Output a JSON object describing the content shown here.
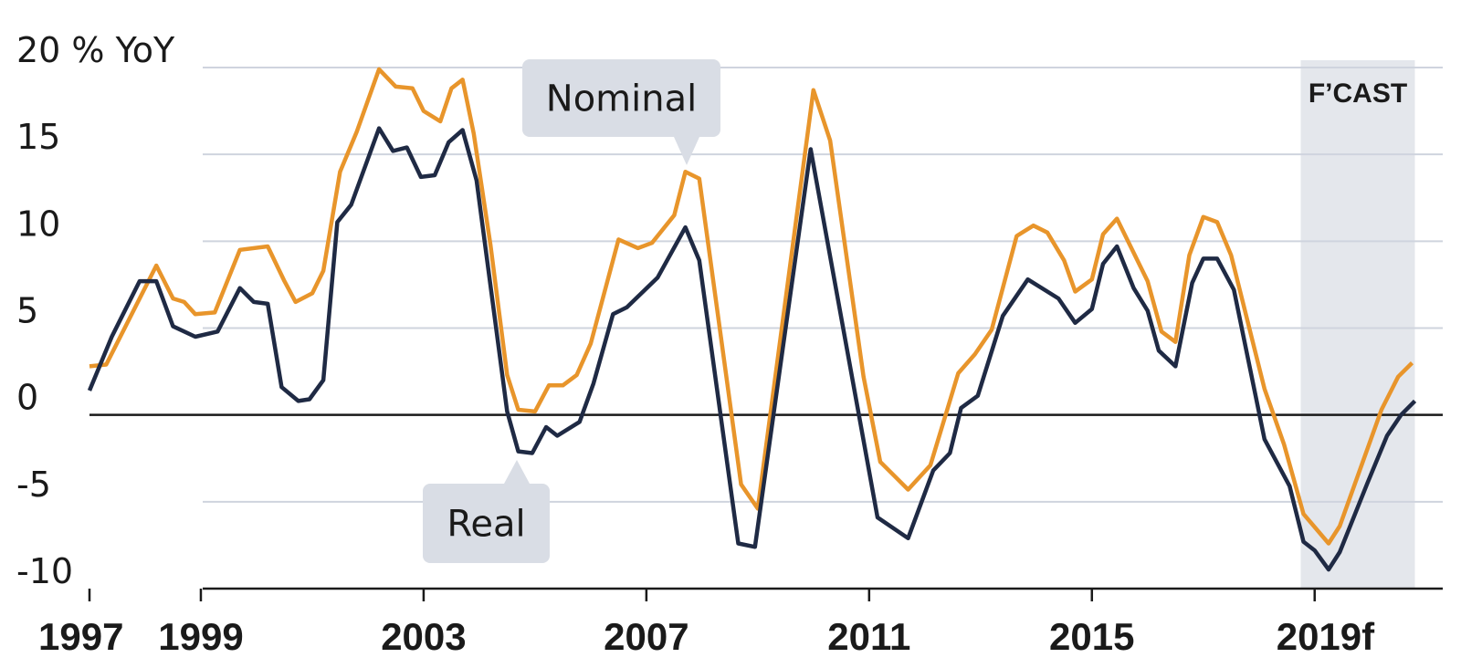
{
  "chart_data": {
    "type": "line",
    "xlim": [
      1997,
      2021.3
    ],
    "ylim": [
      -10,
      20
    ],
    "xticks": [
      1997,
      1999,
      2003,
      2007,
      2011,
      2015,
      {
        "value": 2019,
        "label": "2019f"
      }
    ],
    "yticks": [
      -10,
      -5,
      0,
      5,
      10,
      15,
      {
        "value": 20,
        "label": "20 % YoY"
      }
    ],
    "grid": true,
    "forecast": {
      "label": "F’CAST",
      "xlim": [
        2018.75,
        2020.8
      ]
    },
    "series": [
      {
        "name": "Nominal",
        "color": "#e8952b",
        "x": [
          1997.0,
          1997.3,
          1998.2,
          1998.5,
          1998.7,
          1998.9,
          1999.25,
          1999.7,
          2000.2,
          2000.5,
          2000.7,
          2001.0,
          2001.2,
          2001.5,
          2001.8,
          2002.2,
          2002.5,
          2002.8,
          2003.0,
          2003.3,
          2003.5,
          2003.7,
          2003.9,
          2004.2,
          2004.5,
          2004.7,
          2005.0,
          2005.25,
          2005.5,
          2005.75,
          2006.0,
          2006.5,
          2006.85,
          2007.1,
          2007.5,
          2007.7,
          2007.95,
          2008.7,
          2009.0,
          2010.0,
          2010.3,
          2010.9,
          2011.2,
          2011.45,
          2011.7,
          2012.1,
          2012.6,
          2012.9,
          2013.2,
          2013.65,
          2013.95,
          2014.2,
          2014.5,
          2014.7,
          2015.0,
          2015.2,
          2015.45,
          2016.0,
          2016.25,
          2016.5,
          2016.75,
          2017.0,
          2017.25,
          2017.5,
          2018.1,
          2018.45,
          2018.8,
          2019.25,
          2019.45,
          2020.2,
          2020.5,
          2020.75
        ],
        "values": [
          2.8,
          2.9,
          8.6,
          6.7,
          6.5,
          5.8,
          5.9,
          9.5,
          9.7,
          7.7,
          6.5,
          7.0,
          8.3,
          14.0,
          16.3,
          19.9,
          18.9,
          18.8,
          17.5,
          16.9,
          18.8,
          19.3,
          16.2,
          9.8,
          2.3,
          0.3,
          0.2,
          1.7,
          1.7,
          2.3,
          4.1,
          10.1,
          9.6,
          9.9,
          11.5,
          14.0,
          13.6,
          -4.0,
          -5.4,
          18.7,
          15.8,
          2.2,
          -2.7,
          -3.5,
          -4.3,
          -2.9,
          2.4,
          3.5,
          4.9,
          10.3,
          10.9,
          10.5,
          8.9,
          7.1,
          7.8,
          10.4,
          11.3,
          7.7,
          4.8,
          4.2,
          9.2,
          11.4,
          11.1,
          9.2,
          1.5,
          -1.7,
          -5.7,
          -7.4,
          -6.4,
          0.3,
          2.2,
          3.0
        ]
      },
      {
        "name": "Real",
        "color": "#1f2a44",
        "x": [
          1997.0,
          1997.4,
          1997.9,
          1998.2,
          1998.5,
          1998.9,
          1999.3,
          1999.7,
          1999.95,
          2000.2,
          2000.45,
          2000.75,
          2000.95,
          2001.2,
          2001.45,
          2001.7,
          2002.2,
          2002.45,
          2002.7,
          2002.95,
          2003.2,
          2003.45,
          2003.7,
          2003.95,
          2004.5,
          2004.7,
          2004.95,
          2005.2,
          2005.4,
          2005.8,
          2006.05,
          2006.4,
          2006.65,
          2007.2,
          2007.7,
          2007.95,
          2008.65,
          2008.95,
          2009.95,
          2011.15,
          2011.7,
          2012.15,
          2012.45,
          2012.65,
          2012.95,
          2013.4,
          2013.85,
          2014.4,
          2014.7,
          2015.0,
          2015.2,
          2015.45,
          2015.75,
          2016.0,
          2016.2,
          2016.5,
          2016.8,
          2017.0,
          2017.25,
          2017.55,
          2018.1,
          2018.55,
          2018.8,
          2019.0,
          2019.25,
          2019.45,
          2019.95,
          2020.3,
          2020.55,
          2020.8
        ],
        "values": [
          1.4,
          4.5,
          7.7,
          7.7,
          5.1,
          4.5,
          4.8,
          7.3,
          6.5,
          6.4,
          1.6,
          0.8,
          0.9,
          2.0,
          11.1,
          12.1,
          16.5,
          15.2,
          15.4,
          13.7,
          13.8,
          15.7,
          16.4,
          13.5,
          0.2,
          -2.1,
          -2.2,
          -0.7,
          -1.2,
          -0.4,
          1.8,
          5.8,
          6.2,
          7.9,
          10.8,
          8.9,
          -7.4,
          -7.6,
          15.3,
          -5.9,
          -7.1,
          -3.2,
          -2.2,
          0.4,
          1.1,
          5.7,
          7.8,
          6.7,
          5.3,
          6.1,
          8.7,
          9.7,
          7.3,
          6.0,
          3.7,
          2.8,
          7.6,
          9.0,
          9.0,
          7.2,
          -1.4,
          -4.1,
          -7.3,
          -7.8,
          -8.9,
          -7.9,
          -3.9,
          -1.2,
          0.0,
          0.8
        ]
      }
    ]
  }
}
